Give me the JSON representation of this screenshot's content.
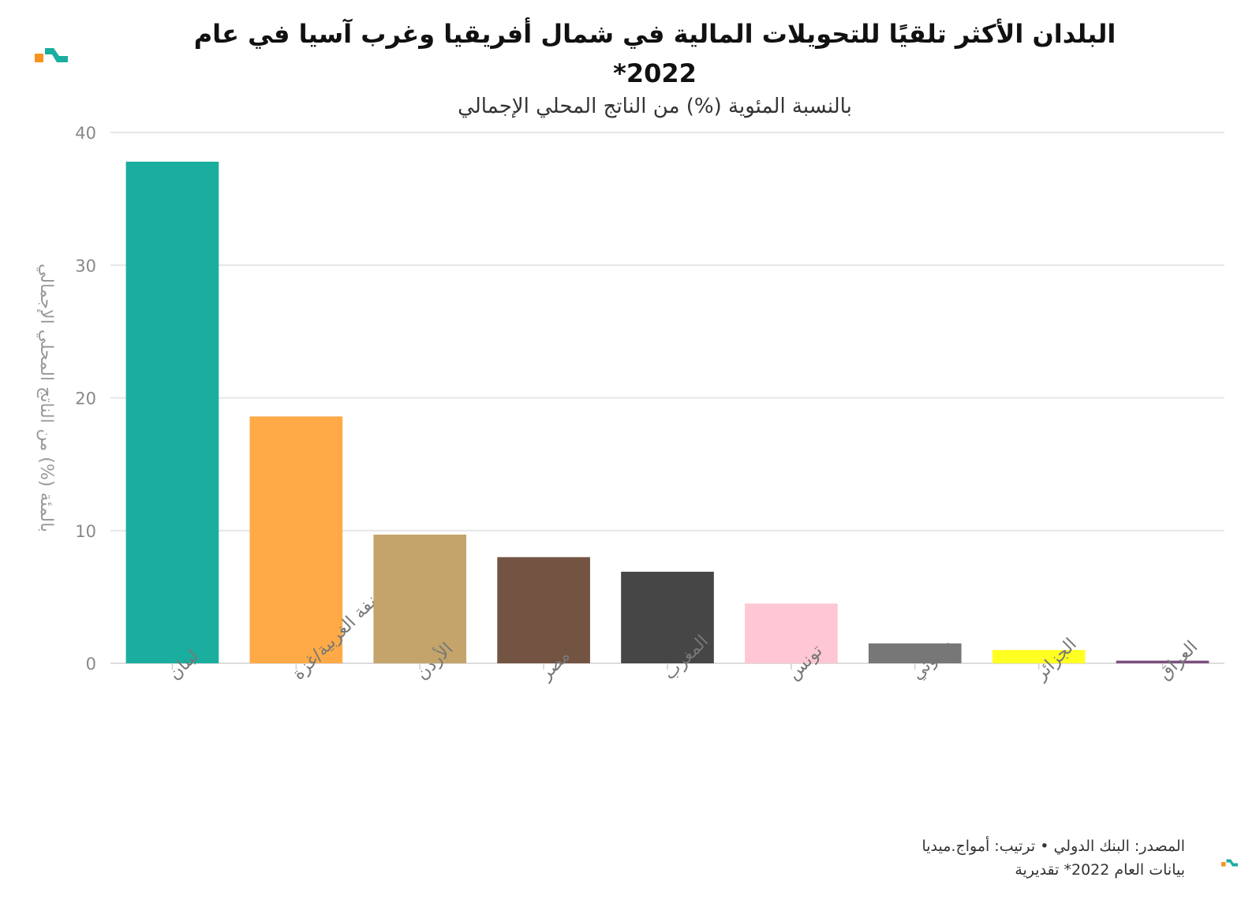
{
  "header": {
    "title": "البلدان الأكثر تلقيًا للتحويلات المالية في شمال أفريقيا وغرب آسيا في عام 2022*",
    "subtitle": "بالنسبة المئوية (%) من الناتج المحلي الإجمالي",
    "logo_icon": "brand-logo-icon"
  },
  "footer": {
    "source": "المصدر: البنك الدولي • ترتيب: أمواج.ميديا",
    "note": "بيانات العام 2022* تقديرية"
  },
  "chart_data": {
    "type": "bar",
    "title": "البلدان الأكثر تلقيًا للتحويلات المالية في شمال أفريقيا وغرب آسيا في عام 2022*",
    "subtitle": "بالنسبة المئوية (%) من الناتج المحلي الإجمالي",
    "xlabel": "",
    "ylabel": "بالمئة (%) من الناتج المحلي الإجمالي",
    "ylim": [
      0,
      40
    ],
    "yticks": [
      0,
      10,
      20,
      30,
      40
    ],
    "grid": true,
    "legend": "none",
    "categories": [
      "لبنان",
      "الضفة الغربية/غزة",
      "الأردن",
      "مصر",
      "المغرب",
      "تونس",
      "جيبوتي",
      "الجزائر",
      "العراق"
    ],
    "values": [
      37.8,
      18.6,
      9.7,
      8.0,
      6.9,
      4.5,
      1.5,
      1.0,
      0.2
    ],
    "colors": [
      "#1aae9f",
      "#ffaa47",
      "#c4a46b",
      "#735442",
      "#464646",
      "#ffc7d3",
      "#777777",
      "#ffff22",
      "#7c4f80"
    ]
  }
}
